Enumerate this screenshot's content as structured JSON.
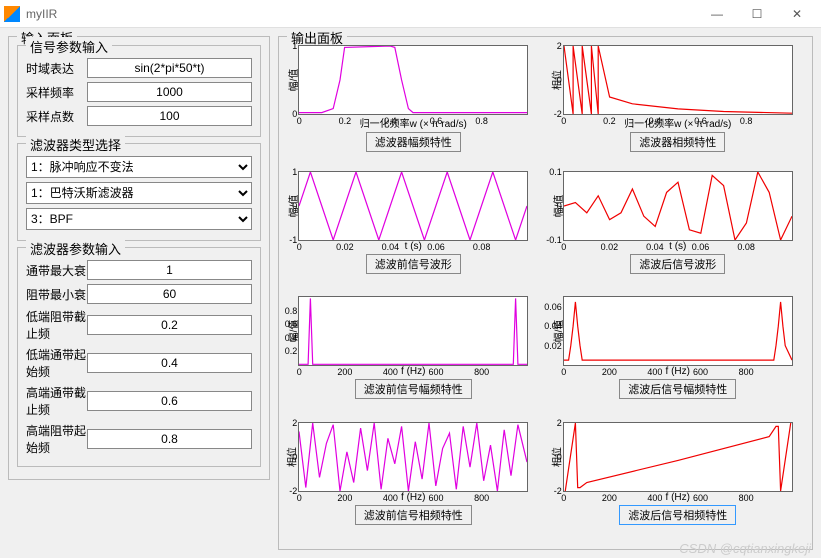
{
  "window": {
    "title": "myIIR",
    "min": "—",
    "max": "☐",
    "close": "✕"
  },
  "panels": {
    "input": "输入面板",
    "output": "输出面板"
  },
  "signal_group": {
    "legend": "信号参数输入",
    "expr_label": "时域表达",
    "expr_value": "sin(2*pi*50*t)",
    "fs_label": "采样频率",
    "fs_value": "1000",
    "n_label": "采样点数",
    "n_value": "100"
  },
  "type_group": {
    "legend": "滤波器类型选择",
    "sel1": "1：脉冲响应不变法",
    "sel2": "1：巴特沃斯滤波器",
    "sel3": "3：BPF"
  },
  "param_group": {
    "legend": "滤波器参数输入",
    "rp_label": "通带最大衰",
    "rp_value": "1",
    "rs_label": "阻带最小衰",
    "rs_value": "60",
    "ws1_label": "低端阻带截止频",
    "ws1_value": "0.2",
    "wp1_label": "低端通带起始频",
    "wp1_value": "0.4",
    "wp2_label": "高端通带截止频",
    "wp2_value": "0.6",
    "ws2_label": "高端阻带起始频",
    "ws2_value": "0.8"
  },
  "plots": {
    "p11": {
      "ylabel": "幅/值",
      "xlabel": "归一化频率w (× π rad/s)",
      "btn": "滤波器幅频特性",
      "xlim": [
        0,
        1
      ],
      "xtick": [
        0,
        0.2,
        0.4,
        0.6,
        0.8
      ],
      "ylim": [
        0,
        1
      ],
      "ytick": [
        0,
        1
      ],
      "color": "#e000e0",
      "sel": false,
      "data": [
        [
          0,
          0.02
        ],
        [
          0.1,
          0.02
        ],
        [
          0.15,
          0.08
        ],
        [
          0.18,
          0.5
        ],
        [
          0.2,
          0.98
        ],
        [
          0.4,
          1
        ],
        [
          0.42,
          0.98
        ],
        [
          0.45,
          0.5
        ],
        [
          0.48,
          0.08
        ],
        [
          0.5,
          0.02
        ],
        [
          1,
          0.02
        ]
      ]
    },
    "p12": {
      "ylabel": "相位",
      "xlabel": "归一化频率w (× π rad/s)",
      "btn": "滤波器相频特性",
      "xlim": [
        0,
        1
      ],
      "xtick": [
        0,
        0.2,
        0.4,
        0.6,
        0.8
      ],
      "ylim": [
        -2,
        2
      ],
      "ytick": [
        -2,
        0,
        2
      ],
      "color": "#f00000",
      "sel": false,
      "data": [
        [
          0,
          2
        ],
        [
          0.04,
          -2
        ],
        [
          0.04,
          2
        ],
        [
          0.08,
          -2
        ],
        [
          0.08,
          2
        ],
        [
          0.12,
          -2
        ],
        [
          0.12,
          2
        ],
        [
          0.15,
          -2
        ],
        [
          0.15,
          2
        ],
        [
          0.2,
          -1
        ],
        [
          0.3,
          -1.4
        ],
        [
          0.5,
          -1.7
        ],
        [
          0.7,
          -1.85
        ],
        [
          1,
          -1.95
        ]
      ]
    },
    "p21": {
      "ylabel": "幅/值",
      "xlabel": "t (s)",
      "btn": "滤波前信号波形",
      "xlim": [
        0,
        0.1
      ],
      "xtick": [
        0,
        0.02,
        0.04,
        0.06,
        0.08
      ],
      "ylim": [
        -1,
        1
      ],
      "ytick": [
        -1,
        0,
        1
      ],
      "color": "#e000e0",
      "sel": false,
      "data": [
        [
          0,
          0
        ],
        [
          0.005,
          1
        ],
        [
          0.01,
          0
        ],
        [
          0.015,
          -1
        ],
        [
          0.02,
          0
        ],
        [
          0.025,
          1
        ],
        [
          0.03,
          0
        ],
        [
          0.035,
          -1
        ],
        [
          0.04,
          0
        ],
        [
          0.045,
          1
        ],
        [
          0.05,
          0
        ],
        [
          0.055,
          -1
        ],
        [
          0.06,
          0
        ],
        [
          0.065,
          1
        ],
        [
          0.07,
          0
        ],
        [
          0.075,
          -1
        ],
        [
          0.08,
          0
        ],
        [
          0.085,
          1
        ],
        [
          0.09,
          0
        ],
        [
          0.095,
          -1
        ],
        [
          0.1,
          0
        ]
      ]
    },
    "p22": {
      "ylabel": "幅/值",
      "xlabel": "t (s)",
      "btn": "滤波后信号波形",
      "xlim": [
        0,
        0.1
      ],
      "xtick": [
        0,
        0.02,
        0.04,
        0.06,
        0.08
      ],
      "ylim": [
        -0.1,
        0.1
      ],
      "ytick": [
        -0.1,
        0,
        0.1
      ],
      "color": "#f00000",
      "sel": false,
      "data": [
        [
          0,
          0
        ],
        [
          0.005,
          0.01
        ],
        [
          0.01,
          -0.02
        ],
        [
          0.015,
          0.03
        ],
        [
          0.02,
          -0.04
        ],
        [
          0.025,
          -0.02
        ],
        [
          0.03,
          0.05
        ],
        [
          0.035,
          -0.03
        ],
        [
          0.04,
          -0.06
        ],
        [
          0.045,
          0.04
        ],
        [
          0.05,
          0.07
        ],
        [
          0.055,
          -0.07
        ],
        [
          0.06,
          -0.08
        ],
        [
          0.065,
          0.09
        ],
        [
          0.07,
          0.06
        ],
        [
          0.075,
          -0.1
        ],
        [
          0.08,
          -0.05
        ],
        [
          0.085,
          0.1
        ],
        [
          0.09,
          0.04
        ],
        [
          0.095,
          -0.1
        ],
        [
          0.1,
          -0.03
        ]
      ]
    },
    "p31": {
      "ylabel": "幅/值",
      "xlabel": "f (Hz)",
      "btn": "滤波前信号幅频特性",
      "xlim": [
        0,
        1000
      ],
      "xtick": [
        0,
        200,
        400,
        600,
        800
      ],
      "ylim": [
        0,
        1
      ],
      "ytick": [
        0.2,
        0.4,
        0.6,
        0.8
      ],
      "color": "#e000e0",
      "sel": false,
      "data": [
        [
          0,
          0.01
        ],
        [
          40,
          0.01
        ],
        [
          50,
          0.98
        ],
        [
          60,
          0.01
        ],
        [
          940,
          0.01
        ],
        [
          950,
          0.98
        ],
        [
          960,
          0.01
        ],
        [
          1000,
          0.01
        ]
      ]
    },
    "p32": {
      "ylabel": "幅/值",
      "xlabel": "f (Hz)",
      "btn": "滤波后信号幅频特性",
      "xlim": [
        0,
        1000
      ],
      "xtick": [
        0,
        200,
        400,
        600,
        800
      ],
      "ylim": [
        0,
        0.07
      ],
      "ytick": [
        0.02,
        0.04,
        0.06
      ],
      "color": "#f00000",
      "sel": false,
      "data": [
        [
          0,
          0.005
        ],
        [
          20,
          0.005
        ],
        [
          30,
          0.02
        ],
        [
          40,
          0.04
        ],
        [
          50,
          0.065
        ],
        [
          60,
          0.04
        ],
        [
          70,
          0.02
        ],
        [
          80,
          0.005
        ],
        [
          920,
          0.005
        ],
        [
          930,
          0.02
        ],
        [
          940,
          0.04
        ],
        [
          950,
          0.065
        ],
        [
          960,
          0.04
        ],
        [
          970,
          0.02
        ],
        [
          1000,
          0.005
        ]
      ]
    },
    "p41": {
      "ylabel": "相位",
      "xlabel": "f (Hz)",
      "btn": "滤波前信号相频特性",
      "xlim": [
        0,
        1000
      ],
      "xtick": [
        0,
        200,
        400,
        600,
        800
      ],
      "ylim": [
        -2,
        2
      ],
      "ytick": [
        -2,
        0,
        2
      ],
      "color": "#e000e0",
      "sel": false,
      "data": [
        [
          0,
          1.5
        ],
        [
          30,
          -1.8
        ],
        [
          60,
          2
        ],
        [
          90,
          -1.2
        ],
        [
          120,
          0.8
        ],
        [
          150,
          1.9
        ],
        [
          180,
          -2
        ],
        [
          210,
          0.3
        ],
        [
          240,
          -1.5
        ],
        [
          270,
          1.7
        ],
        [
          300,
          -0.8
        ],
        [
          330,
          2
        ],
        [
          360,
          -1.9
        ],
        [
          390,
          1.1
        ],
        [
          420,
          -0.4
        ],
        [
          450,
          1.8
        ],
        [
          480,
          -2
        ],
        [
          510,
          0.9
        ],
        [
          540,
          -1.3
        ],
        [
          570,
          2
        ],
        [
          600,
          -1.7
        ],
        [
          630,
          0.5
        ],
        [
          660,
          1.4
        ],
        [
          690,
          -1.9
        ],
        [
          720,
          1.8
        ],
        [
          750,
          -0.6
        ],
        [
          780,
          2
        ],
        [
          810,
          -1.4
        ],
        [
          840,
          0.7
        ],
        [
          870,
          -2
        ],
        [
          900,
          1.6
        ],
        [
          930,
          -1.1
        ],
        [
          960,
          1.9
        ],
        [
          1000,
          -0.3
        ]
      ]
    },
    "p42": {
      "ylabel": "相位",
      "xlabel": "f (Hz)",
      "btn": "滤波后信号相频特性",
      "xlim": [
        0,
        1000
      ],
      "xtick": [
        0,
        200,
        400,
        600,
        800
      ],
      "ylim": [
        -2,
        2
      ],
      "ytick": [
        -2,
        0,
        2
      ],
      "color": "#f00000",
      "sel": true,
      "data": [
        [
          0,
          -2.5
        ],
        [
          50,
          2
        ],
        [
          60,
          -1.8
        ],
        [
          70,
          -1.8
        ],
        [
          100,
          -1.5
        ],
        [
          500,
          -0.2
        ],
        [
          900,
          1.2
        ],
        [
          930,
          1.8
        ],
        [
          940,
          1.8
        ],
        [
          950,
          -2
        ],
        [
          1000,
          2.5
        ]
      ]
    }
  },
  "watermark": "CSDN @cqtianxingkeji"
}
